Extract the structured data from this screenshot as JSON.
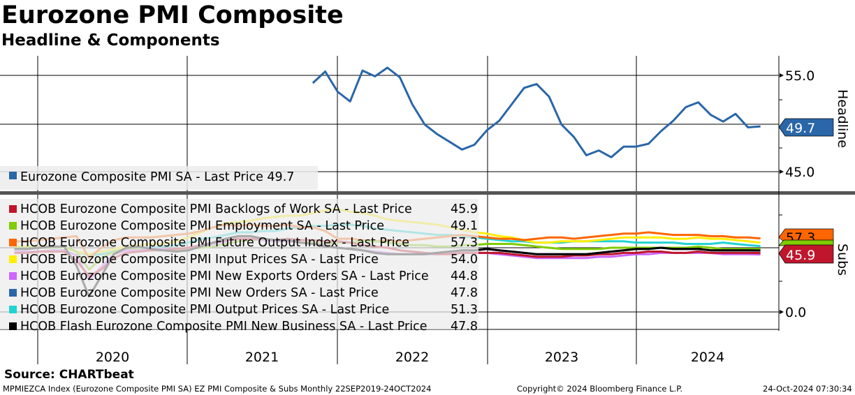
{
  "header": {
    "title": "Eurozone PMI Composite",
    "subtitle": "Headline & Components"
  },
  "chart_data": [
    {
      "type": "line",
      "panel": "Headline",
      "start_month": "2021-10",
      "yticks": [
        "55.0",
        "45.0"
      ],
      "ylim": [
        44,
        57
      ],
      "series": [
        {
          "name": "Eurozone Composite PMI SA - Last Price 49.7",
          "color": "#2a66a8",
          "last_label": "49.7",
          "values": [
            54.2,
            55.4,
            53.3,
            52.3,
            55.5,
            54.9,
            55.8,
            54.8,
            52.0,
            49.9,
            48.9,
            48.1,
            47.3,
            47.8,
            49.3,
            50.3,
            52.0,
            53.7,
            54.1,
            52.8,
            49.9,
            48.6,
            46.7,
            47.2,
            46.5,
            47.6,
            47.6,
            47.9,
            49.2,
            50.3,
            51.7,
            52.2,
            50.9,
            50.2,
            51.0,
            49.6,
            49.7
          ]
        }
      ]
    },
    {
      "type": "line",
      "panel": "Subs",
      "start_month": "2019-10",
      "yticks": [
        "0.0"
      ],
      "ylim": [
        -13,
        90
      ],
      "series": [
        {
          "name": "HCOB Eurozone Composite PMI Backlogs of Work SA - Last Price",
          "value_label": "45.9",
          "color": "#c0162c",
          "values": [
            46,
            46,
            47,
            47,
            47,
            40,
            28,
            33,
            42,
            46,
            47,
            48,
            48,
            49,
            50,
            52,
            54,
            56,
            57,
            57,
            57,
            56,
            57,
            56,
            56,
            55,
            55,
            54,
            52,
            51,
            50,
            48,
            47,
            46,
            45,
            45,
            46,
            46,
            46,
            46,
            45,
            44,
            43,
            43,
            43,
            44,
            44,
            45,
            45,
            46,
            46,
            47,
            47,
            46,
            46,
            47,
            46,
            46,
            46,
            46,
            45.9
          ]
        },
        {
          "name": "HCOB Eurozone Composite PMI Employment SA - Last Price",
          "value_label": "49.1",
          "color": "#7fcc00",
          "values": [
            50,
            50,
            50,
            50,
            51,
            47,
            33,
            42,
            47,
            49,
            49,
            49,
            49,
            48,
            49,
            50,
            51,
            53,
            55,
            56,
            56,
            55,
            55,
            54,
            54,
            53,
            54,
            54,
            55,
            55,
            54,
            53,
            52,
            52,
            51,
            51,
            52,
            52,
            53,
            53,
            53,
            52,
            51,
            50,
            49,
            49,
            49,
            49,
            50,
            50,
            50,
            50,
            50,
            50,
            50,
            51,
            50,
            49,
            49,
            49,
            49.1
          ]
        },
        {
          "name": "HCOB Eurozone Composite PMI Future Output Index - Last Price",
          "value_label": "57.3",
          "color": "#ff6600",
          "values": [
            55,
            55,
            56,
            57,
            58,
            59,
            42,
            50,
            56,
            58,
            58,
            58,
            59,
            60,
            61,
            63,
            66,
            68,
            67,
            68,
            67,
            67,
            68,
            66,
            66,
            63,
            57,
            57,
            56,
            55,
            56,
            55,
            56,
            57,
            58,
            59,
            60,
            59,
            58,
            57,
            57,
            56,
            57,
            58,
            58,
            57,
            58,
            59,
            60,
            61,
            61,
            62,
            61,
            60,
            60,
            60,
            59,
            59,
            58,
            58,
            57.3
          ]
        },
        {
          "name": "HCOB Eurozone Composite PMI Input Prices SA - Last Price",
          "value_label": "54.0",
          "color": "#ffee00",
          "values": [
            51,
            51,
            51,
            51,
            50,
            47,
            45,
            47,
            49,
            51,
            52,
            53,
            53,
            55,
            58,
            62,
            66,
            69,
            70,
            71,
            73,
            74,
            75,
            75,
            77,
            79,
            80,
            78,
            77,
            75,
            72,
            71,
            70,
            69,
            68,
            66,
            64,
            62,
            61,
            59,
            58,
            56,
            54,
            54,
            55,
            55,
            55,
            56,
            57,
            58,
            58,
            58,
            58,
            57,
            57,
            58,
            57,
            57,
            56,
            55,
            54.0
          ]
        },
        {
          "name": "HCOB Eurozone Composite PMI New Exports Orders SA - Last Price",
          "value_label": "44.8",
          "color": "#cc66ff",
          "values": [
            47,
            47,
            47,
            48,
            48,
            44,
            25,
            35,
            45,
            48,
            48,
            49,
            49,
            49,
            50,
            51,
            53,
            55,
            57,
            57,
            56,
            55,
            55,
            54,
            53,
            52,
            50,
            49,
            48,
            47,
            46,
            45,
            45,
            45,
            45,
            46,
            46,
            46,
            46,
            45,
            44,
            43,
            42,
            42,
            42,
            42,
            42,
            43,
            43,
            44,
            45,
            45,
            46,
            46,
            46,
            46,
            46,
            45,
            45,
            45,
            44.8
          ]
        },
        {
          "name": "HCOB Eurozone Composite PMI New Orders SA - Last Price",
          "value_label": "47.8",
          "color": "#2a66a8",
          "values": [
            49,
            49,
            50,
            51,
            51,
            36,
            12,
            28,
            45,
            50,
            51,
            49,
            48,
            47,
            48,
            51,
            54,
            57,
            59,
            59,
            57,
            56,
            56,
            54,
            53,
            51,
            50,
            49,
            48,
            46,
            45,
            45,
            45,
            45,
            46,
            47,
            48,
            48,
            49,
            48,
            47,
            46,
            45,
            45,
            45,
            45,
            45,
            46,
            47,
            48,
            49,
            49,
            50,
            49,
            49,
            49,
            48,
            48,
            48,
            48,
            47.8
          ]
        },
        {
          "name": "HCOB Eurozone Composite PMI Output Prices SA - Last Price",
          "value_label": "51.3",
          "color": "#22d3d3",
          "values": [
            50,
            50,
            50,
            50,
            50,
            47,
            44,
            45,
            47,
            49,
            50,
            50,
            51,
            52,
            54,
            57,
            58,
            60,
            62,
            62,
            63,
            63,
            65,
            66,
            67,
            67,
            68,
            68,
            67,
            65,
            64,
            63,
            62,
            61,
            60,
            60,
            59,
            58,
            57,
            56,
            55,
            55,
            54,
            54,
            54,
            55,
            55,
            55,
            55,
            55,
            54,
            54,
            54,
            54,
            53,
            53,
            53,
            54,
            53,
            52,
            51.3
          ]
        },
        {
          "name": "HCOB Flash Eurozone Composite PMI New Business SA - Last Price",
          "value_label": "47.8",
          "color": "#000000",
          "values": [
            49,
            49,
            50,
            51,
            51,
            36,
            12,
            28,
            45,
            50,
            51,
            49,
            48,
            47,
            48,
            51,
            54,
            57,
            59,
            59,
            57,
            56,
            56,
            54,
            53,
            51,
            50,
            49,
            48,
            46,
            45,
            45,
            45,
            45,
            46,
            47,
            48,
            48,
            49,
            48,
            47,
            46,
            45,
            45,
            45,
            45,
            45,
            46,
            47,
            48,
            49,
            49,
            50,
            49,
            49,
            49,
            48,
            48,
            48,
            48,
            47.8
          ]
        }
      ],
      "tags": [
        "57.3",
        "45.9"
      ]
    }
  ],
  "axes": {
    "right_label_top": "Headline",
    "right_label_bottom": "Subs",
    "x_years": [
      "2020",
      "2021",
      "2022",
      "2023",
      "2024"
    ]
  },
  "footer": {
    "source": "Source: CHARTbeat",
    "ticker": "MPMIEZCA Index (Eurozone Composite PMI SA) EZ PMI Composite & Subs  Monthly 22SEP2019-24OCT2024",
    "copyright": "Copyright© 2024 Bloomberg Finance L.P.",
    "timestamp": "24-Oct-2024 07:30:34"
  }
}
